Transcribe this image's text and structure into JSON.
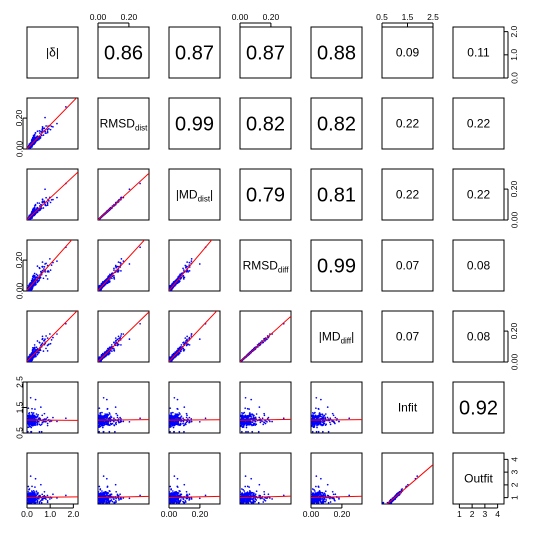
{
  "chart_data": {
    "type": "scatter_matrix",
    "variables": [
      {
        "id": "abs_delta",
        "main": "|δ|",
        "sub": "",
        "tail": ""
      },
      {
        "id": "rmsd_dist",
        "main": "RMSD",
        "sub": "dist",
        "tail": ""
      },
      {
        "id": "abs_md_dist",
        "main": "|MD",
        "sub": "dist",
        "tail": "|"
      },
      {
        "id": "rmsd_diff",
        "main": "RMSD",
        "sub": "diff",
        "tail": ""
      },
      {
        "id": "abs_md_diff",
        "main": "|MD",
        "sub": "diff",
        "tail": "|"
      },
      {
        "id": "infit",
        "main": "Infit",
        "sub": "",
        "tail": ""
      },
      {
        "id": "outfit",
        "main": "Outfit",
        "sub": "",
        "tail": ""
      }
    ],
    "ranges": [
      [
        0,
        2.2
      ],
      [
        0,
        0.33
      ],
      [
        0,
        0.33
      ],
      [
        0,
        0.33
      ],
      [
        0,
        0.33
      ],
      [
        0.5,
        2.5
      ],
      [
        0.5,
        4.5
      ]
    ],
    "axes": {
      "top": [
        {
          "col": 1,
          "ticks": [
            0.0,
            0.2
          ],
          "labels": [
            "0.00",
            "0.20"
          ]
        },
        {
          "col": 3,
          "ticks": [
            0.0,
            0.2
          ],
          "labels": [
            "0.00",
            "0.20"
          ]
        },
        {
          "col": 5,
          "ticks": [
            0.5,
            1.5,
            2.5
          ],
          "labels": [
            "0.5",
            "1.5",
            "2.5"
          ]
        }
      ],
      "bottom": [
        {
          "col": 0,
          "ticks": [
            0.0,
            1.0,
            2.0
          ],
          "labels": [
            "0.0",
            "1.0",
            "2.0"
          ]
        },
        {
          "col": 2,
          "ticks": [
            0.0,
            0.2
          ],
          "labels": [
            "0.00",
            "0.20"
          ]
        },
        {
          "col": 4,
          "ticks": [
            0.0,
            0.2
          ],
          "labels": [
            "0.00",
            "0.20"
          ]
        },
        {
          "col": 6,
          "ticks": [
            1,
            2,
            3,
            4
          ],
          "labels": [
            "1",
            "2",
            "3",
            "4"
          ]
        }
      ],
      "left": [
        {
          "row": 1,
          "ticks": [
            0.0,
            0.2
          ],
          "labels": [
            "0.00",
            "0.20"
          ]
        },
        {
          "row": 3,
          "ticks": [
            0.0,
            0.2
          ],
          "labels": [
            "0.00",
            "0.20"
          ]
        },
        {
          "row": 5,
          "ticks": [
            0.5,
            1.5,
            2.5
          ],
          "labels": [
            "0.5",
            "1.5",
            "2.5"
          ]
        }
      ],
      "right": [
        {
          "row": 0,
          "ticks": [
            0.0,
            1.0,
            2.0
          ],
          "labels": [
            "0.0",
            "1.0",
            "2.0"
          ]
        },
        {
          "row": 2,
          "ticks": [
            0.0,
            0.2
          ],
          "labels": [
            "0.00",
            "0.20"
          ]
        },
        {
          "row": 4,
          "ticks": [
            0.0,
            0.2
          ],
          "labels": [
            "0.00",
            "0.20"
          ]
        },
        {
          "row": 6,
          "ticks": [
            1,
            2,
            3,
            4
          ],
          "labels": [
            "1",
            "2",
            "3",
            "4"
          ]
        }
      ]
    },
    "correlations": [
      {
        "row": 0,
        "col": 1,
        "value": "0.86"
      },
      {
        "row": 0,
        "col": 2,
        "value": "0.87"
      },
      {
        "row": 0,
        "col": 3,
        "value": "0.87"
      },
      {
        "row": 0,
        "col": 4,
        "value": "0.88"
      },
      {
        "row": 0,
        "col": 5,
        "value": "0.09"
      },
      {
        "row": 0,
        "col": 6,
        "value": "0.11"
      },
      {
        "row": 1,
        "col": 2,
        "value": "0.99"
      },
      {
        "row": 1,
        "col": 3,
        "value": "0.82"
      },
      {
        "row": 1,
        "col": 4,
        "value": "0.82"
      },
      {
        "row": 1,
        "col": 5,
        "value": "0.22"
      },
      {
        "row": 1,
        "col": 6,
        "value": "0.22"
      },
      {
        "row": 2,
        "col": 3,
        "value": "0.79"
      },
      {
        "row": 2,
        "col": 4,
        "value": "0.81"
      },
      {
        "row": 2,
        "col": 5,
        "value": "0.22"
      },
      {
        "row": 2,
        "col": 6,
        "value": "0.22"
      },
      {
        "row": 3,
        "col": 4,
        "value": "0.99"
      },
      {
        "row": 3,
        "col": 5,
        "value": "0.07"
      },
      {
        "row": 3,
        "col": 6,
        "value": "0.08"
      },
      {
        "row": 4,
        "col": 5,
        "value": "0.07"
      },
      {
        "row": 4,
        "col": 6,
        "value": "0.08"
      },
      {
        "row": 5,
        "col": 6,
        "value": "0.92"
      }
    ],
    "point_color": "#0000ff",
    "fit_line_color": "#ff0000",
    "grid": false
  }
}
